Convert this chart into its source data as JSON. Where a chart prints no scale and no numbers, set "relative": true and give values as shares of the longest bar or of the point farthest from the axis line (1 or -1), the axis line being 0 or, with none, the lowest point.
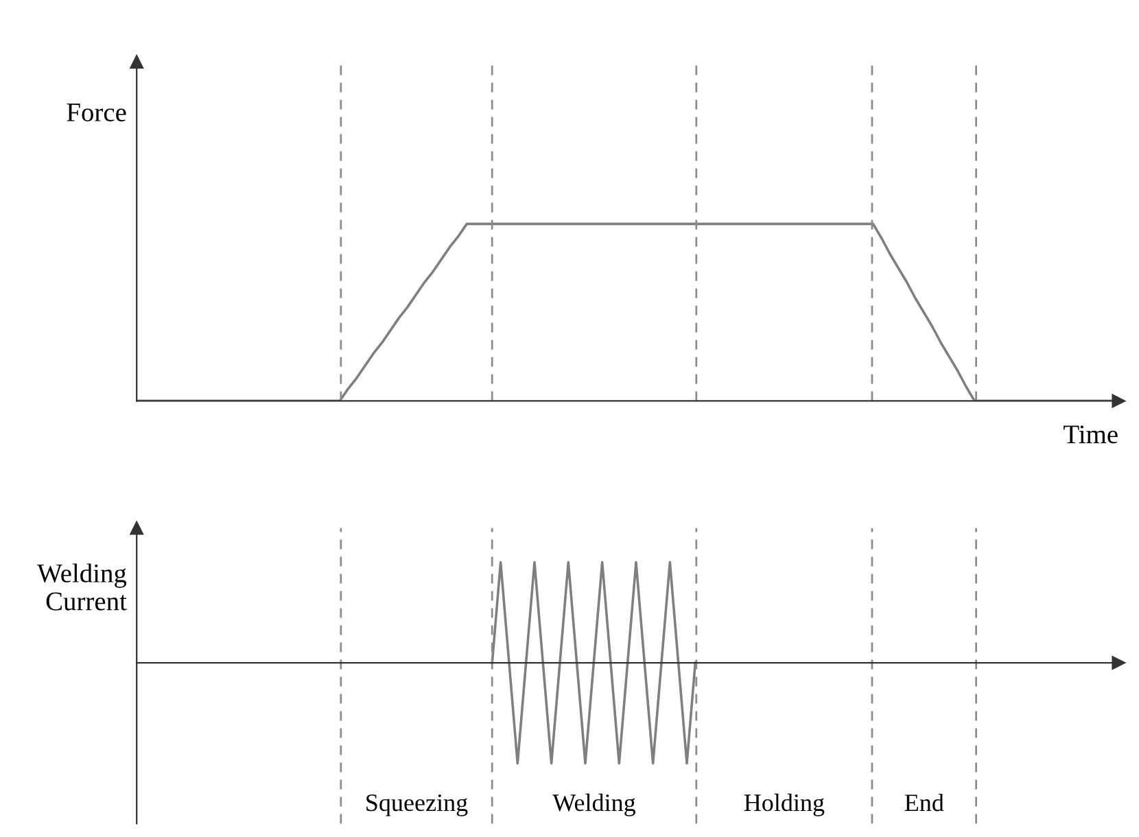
{
  "chart_data": [
    {
      "type": "line",
      "ylabel": "Force",
      "xlabel": "Time",
      "relative": true,
      "categories": [
        null,
        null,
        null,
        null,
        null,
        null,
        null,
        null,
        null,
        null,
        null,
        null,
        null,
        null,
        null,
        null,
        null,
        null,
        null,
        null,
        null,
        null,
        null,
        null,
        null,
        null,
        null,
        null,
        null,
        null,
        null,
        null,
        null,
        null,
        null,
        null,
        null,
        null,
        null,
        null,
        null,
        null,
        null,
        null,
        null,
        null,
        null,
        null,
        null,
        null,
        null,
        null,
        null,
        null,
        null,
        null,
        null,
        null,
        null,
        null,
        null,
        null,
        null,
        null,
        null,
        null,
        null,
        null,
        null,
        null,
        null,
        null,
        null,
        null,
        null,
        null,
        null,
        null,
        null,
        null,
        null,
        null,
        null,
        null,
        null,
        null,
        null,
        null,
        null,
        null,
        null,
        null,
        null,
        null,
        null,
        null,
        null,
        null,
        null,
        null,
        null,
        null,
        null,
        null,
        null,
        null,
        null,
        null,
        null,
        null,
        null,
        null,
        null,
        null,
        null,
        null,
        null
      ],
      "series": [
        {
          "color": "#7f7f7f",
          "values": [
            0,
            0,
            0,
            0,
            0,
            0,
            0,
            0,
            0,
            0,
            0,
            0,
            0,
            0,
            0,
            0,
            0,
            0,
            0,
            0,
            0,
            0,
            0,
            0,
            0,
            0.07,
            0.13,
            0.2,
            0.27,
            0.33,
            0.4,
            0.47,
            0.53,
            0.6,
            0.67,
            0.73,
            0.8,
            0.87,
            0.93,
            1,
            1,
            1,
            1,
            1,
            1,
            1,
            1,
            1,
            1,
            1,
            1,
            1,
            1,
            1,
            1,
            1,
            1,
            1,
            1,
            1,
            1,
            1,
            1,
            1,
            1,
            1,
            1,
            1,
            1,
            1,
            1,
            1,
            1,
            1,
            1,
            1,
            1,
            1,
            1,
            1,
            1,
            1,
            1,
            1,
            1,
            1,
            1,
            1,
            0.92,
            0.83,
            0.75,
            0.67,
            0.58,
            0.5,
            0.42,
            0.33,
            0.25,
            0.17,
            0.08,
            0,
            0,
            0,
            0,
            0,
            0,
            0,
            0,
            0,
            0,
            0,
            0,
            0,
            0,
            0,
            0,
            0,
            0
          ]
        }
      ]
    },
    {
      "type": "line",
      "ylabel": "Welding Current",
      "relative": true,
      "categories": [
        null,
        null,
        null,
        null,
        null,
        null,
        null,
        null,
        null,
        null,
        null,
        null,
        null,
        null,
        null,
        null,
        null,
        null,
        null,
        null,
        null,
        null,
        null,
        null,
        null,
        null,
        null,
        null,
        null,
        null,
        null,
        null,
        null,
        null,
        null,
        null,
        null,
        null,
        null,
        null,
        null,
        null,
        null,
        null,
        null,
        null,
        null,
        null,
        null,
        null,
        null,
        null,
        null,
        null,
        null,
        null,
        null,
        null,
        null,
        null,
        null,
        null,
        null,
        null,
        null,
        null,
        null,
        null,
        null,
        null,
        null,
        null,
        null,
        null,
        null,
        null,
        null,
        null,
        null,
        null,
        null,
        null,
        null,
        null,
        null,
        null,
        null,
        null,
        null,
        null,
        null,
        null,
        null,
        null,
        null,
        null,
        null,
        null,
        null,
        null,
        null,
        null,
        null,
        null,
        null,
        null,
        null,
        null,
        null,
        null,
        null,
        null,
        null,
        null,
        null,
        null,
        null
      ],
      "series": [
        {
          "color": "#7f7f7f",
          "values": [
            null,
            null,
            null,
            null,
            null,
            null,
            null,
            null,
            null,
            null,
            null,
            null,
            null,
            null,
            null,
            null,
            null,
            null,
            null,
            null,
            null,
            null,
            null,
            null,
            null,
            null,
            null,
            null,
            null,
            null,
            null,
            null,
            null,
            null,
            null,
            null,
            null,
            null,
            null,
            null,
            null,
            null,
            0,
            1,
            0,
            -1,
            0,
            1,
            0,
            -1,
            0,
            1,
            0,
            -1,
            0,
            1,
            0,
            -1,
            0,
            1,
            0,
            -1,
            0,
            1,
            0,
            -1,
            0,
            null,
            null,
            null,
            null,
            null,
            null,
            null,
            null,
            null,
            null,
            null,
            null,
            null,
            null,
            null,
            null,
            null,
            null,
            null,
            null,
            null,
            null,
            null,
            null,
            null,
            null,
            null,
            null,
            null,
            null,
            null,
            null,
            null,
            null,
            null,
            null,
            null,
            null,
            null,
            null,
            null,
            null,
            null,
            null,
            null,
            null,
            null,
            null,
            null,
            null
          ]
        }
      ],
      "annotations": [
        "Squeezing",
        "Welding",
        "Holding",
        "End"
      ]
    }
  ]
}
